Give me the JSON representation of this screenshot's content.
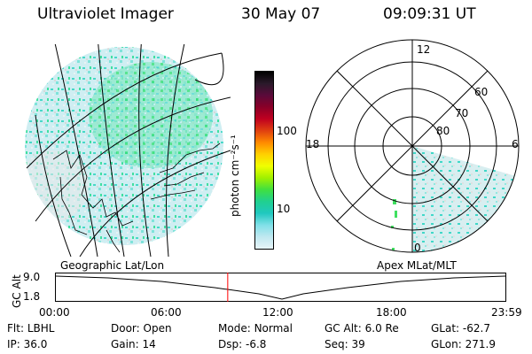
{
  "header": {
    "title": "Ultraviolet Imager",
    "date": "30 May 07",
    "time": "09:09:31 UT"
  },
  "colorbar": {
    "unit_label": "photon cm⁻²s⁻¹",
    "ticks": [
      "100",
      "10"
    ],
    "colors": [
      "#000000",
      "#2a1a2a",
      "#5a0a3a",
      "#8a0028",
      "#c00020",
      "#e04010",
      "#ff8a00",
      "#ffd000",
      "#f0ff00",
      "#a0f000",
      "#40e040",
      "#20d090",
      "#20c8c0",
      "#80e0e8",
      "#c0e8f0",
      "#e8f4f8"
    ]
  },
  "polar": {
    "mlt_labels": {
      "top": "12",
      "left": "18",
      "right": "6",
      "bottom": "0"
    },
    "lat_labels": [
      "60",
      "70",
      "80"
    ]
  },
  "panels": {
    "left_caption": "Geographic Lat/Lon",
    "right_caption": "Apex MLat/MLT"
  },
  "altplot": {
    "ylabel": "GC Alt",
    "yticks": [
      "9.0",
      "1.8"
    ],
    "xticks": [
      "00:00",
      "06:00",
      "12:00",
      "18:00",
      "23:59"
    ],
    "current_marker_hours": 9.158,
    "color_marker": "#ff0000"
  },
  "info": {
    "row1": [
      {
        "k": "Flt:",
        "v": "LBHL"
      },
      {
        "k": "Door:",
        "v": "Open"
      },
      {
        "k": "Mode:",
        "v": "Normal"
      },
      {
        "k": "GC Alt:",
        "v": "6.0 Re"
      },
      {
        "k": "GLat:",
        "v": "-62.7"
      }
    ],
    "row2": [
      {
        "k": "IP:",
        "v": "36.0"
      },
      {
        "k": "Gain:",
        "v": "14"
      },
      {
        "k": "Dsp:",
        "v": "-6.8"
      },
      {
        "k": "Seq:",
        "v": "39"
      },
      {
        "k": "GLon:",
        "v": "271.9"
      }
    ]
  }
}
